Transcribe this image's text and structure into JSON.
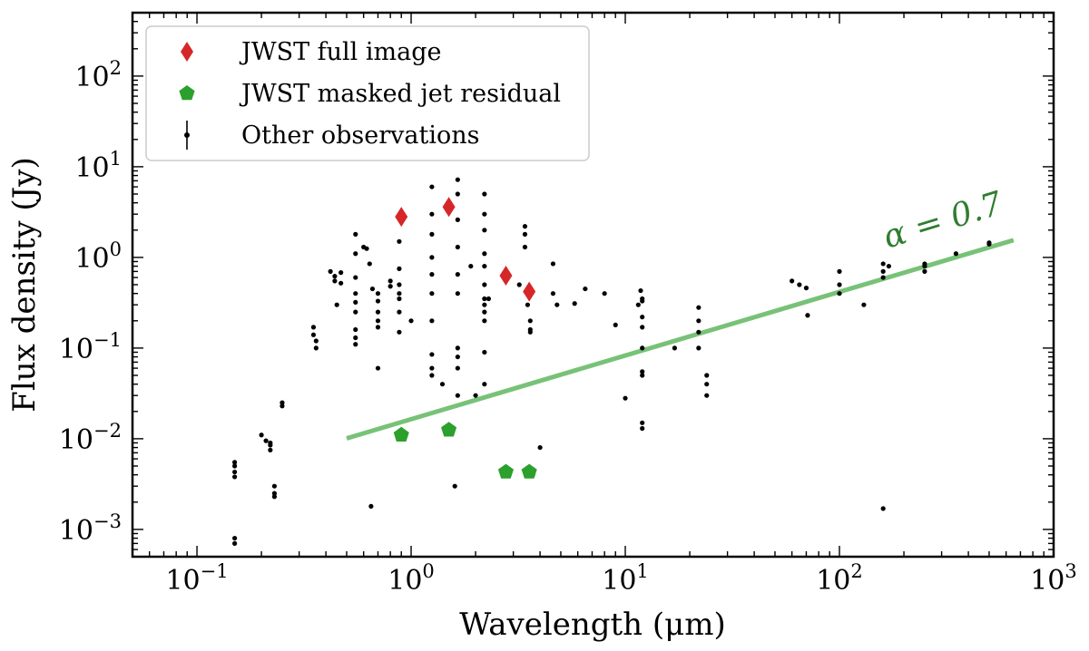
{
  "chart_data": {
    "type": "scatter",
    "title": "",
    "xlabel": "Wavelength (μm)",
    "ylabel": "Flux density (Jy)",
    "xscale": "log",
    "yscale": "log",
    "xlim": [
      0.05,
      1000
    ],
    "ylim": [
      0.0005,
      500
    ],
    "x_ticks": [
      {
        "value": 0.1,
        "base": "10",
        "exp": "−1"
      },
      {
        "value": 1,
        "base": "10",
        "exp": "0"
      },
      {
        "value": 10,
        "base": "10",
        "exp": "1"
      },
      {
        "value": 100,
        "base": "10",
        "exp": "2"
      },
      {
        "value": 1000,
        "base": "10",
        "exp": "3"
      }
    ],
    "y_ticks": [
      {
        "value": 0.001,
        "base": "10",
        "exp": "−3"
      },
      {
        "value": 0.01,
        "base": "10",
        "exp": "−2"
      },
      {
        "value": 0.1,
        "base": "10",
        "exp": "−1"
      },
      {
        "value": 1,
        "base": "10",
        "exp": "0"
      },
      {
        "value": 10,
        "base": "10",
        "exp": "1"
      },
      {
        "value": 100,
        "base": "10",
        "exp": "2"
      }
    ],
    "legend_position": "top-left",
    "series": [
      {
        "name": "JWST full image",
        "marker": "diamond",
        "color": "#d62728",
        "x": [
          0.9,
          1.5,
          2.77,
          3.56
        ],
        "y": [
          2.8,
          3.6,
          0.63,
          0.42
        ]
      },
      {
        "name": "JWST masked jet residual",
        "marker": "pentagon",
        "color": "#2ca02c",
        "x": [
          0.9,
          1.5,
          2.77,
          3.56
        ],
        "y": [
          0.011,
          0.0125,
          0.0043,
          0.0043
        ]
      },
      {
        "name": "Other observations",
        "marker": "point",
        "color": "#000000",
        "x": [
          0.15,
          0.15,
          0.15,
          0.15,
          0.15,
          0.15,
          0.2,
          0.21,
          0.22,
          0.22,
          0.22,
          0.23,
          0.23,
          0.23,
          0.25,
          0.25,
          0.35,
          0.35,
          0.36,
          0.36,
          0.42,
          0.44,
          0.44,
          0.47,
          0.47,
          0.55,
          0.55,
          0.55,
          0.55,
          0.55,
          0.55,
          0.55,
          0.55,
          0.55,
          0.6,
          0.62,
          0.64,
          0.66,
          0.7,
          0.7,
          0.7,
          0.7,
          0.7,
          0.8,
          0.8,
          0.88,
          0.88,
          0.88,
          0.88,
          0.88,
          0.88,
          0.88,
          1.25,
          1.25,
          1.25,
          1.25,
          1.25,
          1.25,
          1.25,
          1.25,
          1.25,
          1.25,
          1.65,
          1.65,
          1.65,
          1.65,
          1.65,
          1.65,
          1.65,
          1.65,
          1.65,
          1.65,
          2.2,
          2.2,
          2.2,
          2.2,
          2.2,
          2.2,
          2.2,
          2.2,
          2.2,
          2.2,
          2.2,
          2.2,
          3.4,
          3.4,
          3.4,
          3.5,
          3.6,
          3.6,
          3.6,
          4.6,
          4.6,
          4.8,
          5.8,
          6.5,
          8,
          9,
          10,
          11.5,
          11.8,
          12,
          12,
          12,
          12,
          12,
          12,
          12,
          12,
          12,
          17,
          22,
          22,
          22,
          22,
          24,
          24,
          24,
          60,
          65,
          70,
          71,
          100,
          100,
          100,
          130,
          160,
          160,
          160,
          160,
          170,
          250,
          250,
          250,
          350,
          500,
          500,
          0.65,
          1.6,
          4.0,
          3.7,
          0.7,
          0.45,
          1.0,
          2.0,
          1.4,
          1.9,
          2.3,
          3.2
        ],
        "y": [
          0.0055,
          0.005,
          0.0043,
          0.0038,
          0.0008,
          0.0007,
          0.011,
          0.0095,
          0.009,
          0.0085,
          0.0075,
          0.003,
          0.0025,
          0.0023,
          0.025,
          0.023,
          0.17,
          0.14,
          0.12,
          0.1,
          0.7,
          0.62,
          0.55,
          0.68,
          0.52,
          1.8,
          1.1,
          0.6,
          0.4,
          0.32,
          0.25,
          0.16,
          0.13,
          0.11,
          1.3,
          1.25,
          0.85,
          0.45,
          0.4,
          0.33,
          0.25,
          0.2,
          0.17,
          0.55,
          0.48,
          1.5,
          0.75,
          0.5,
          0.4,
          0.35,
          0.25,
          0.15,
          6.0,
          3.0,
          1.8,
          1.0,
          0.65,
          0.4,
          0.2,
          0.085,
          0.06,
          0.05,
          7.2,
          5.0,
          2.6,
          1.3,
          0.65,
          0.4,
          0.1,
          0.08,
          0.06,
          0.03,
          5.0,
          3.0,
          2.0,
          1.1,
          0.8,
          0.5,
          0.35,
          0.3,
          0.25,
          0.2,
          0.09,
          0.04,
          2.2,
          1.8,
          1.3,
          0.3,
          0.2,
          0.16,
          0.15,
          0.85,
          0.4,
          0.3,
          0.31,
          0.45,
          0.4,
          0.18,
          0.028,
          0.3,
          0.43,
          0.35,
          0.33,
          0.22,
          0.17,
          0.1,
          0.055,
          0.05,
          0.015,
          0.013,
          0.1,
          0.28,
          0.2,
          0.15,
          0.1,
          0.05,
          0.04,
          0.03,
          0.55,
          0.5,
          0.46,
          0.23,
          0.7,
          0.5,
          0.4,
          0.3,
          0.85,
          0.7,
          0.6,
          0.0017,
          0.8,
          0.85,
          0.8,
          0.7,
          1.1,
          1.45,
          1.4,
          0.0018,
          0.003,
          0.008,
          0.004,
          0.06,
          0.3,
          0.2,
          0.03,
          0.04,
          0.8,
          0.35,
          0.5
        ]
      }
    ],
    "fit_line": {
      "color": "#77c277",
      "x": [
        0.5,
        650
      ],
      "y": [
        0.0101,
        1.55
      ],
      "label_text": "α = 0.7"
    }
  }
}
